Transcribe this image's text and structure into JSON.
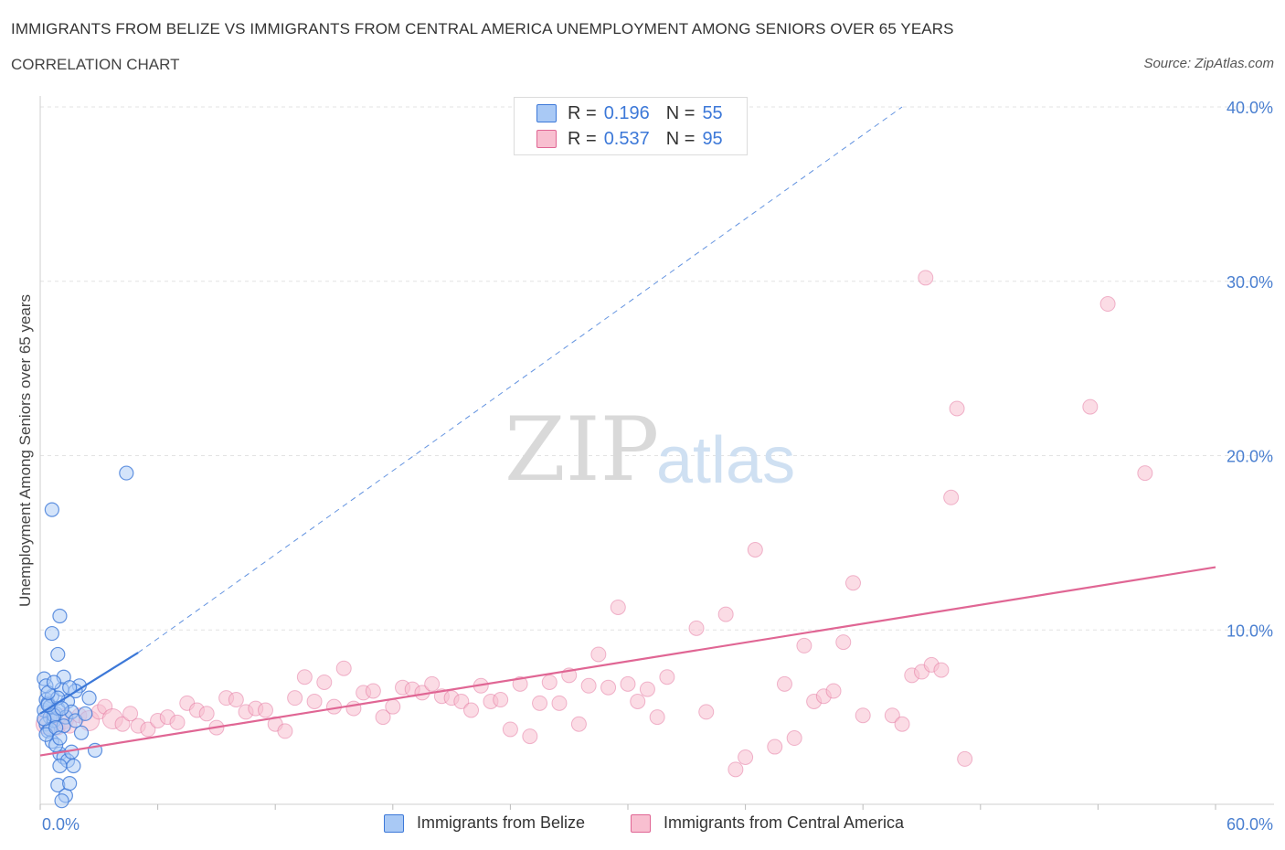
{
  "header": {
    "title": "IMMIGRANTS FROM BELIZE VS IMMIGRANTS FROM CENTRAL AMERICA UNEMPLOYMENT AMONG SENIORS OVER 65 YEARS",
    "subtitle": "CORRELATION CHART",
    "source": "Source: ZipAtlas.com"
  },
  "watermark": {
    "zip": "ZIP",
    "atlas": "atlas"
  },
  "legend_top": {
    "r_label": "R =",
    "n_label": "N =",
    "rows": [
      {
        "r": "0.196",
        "n": "55",
        "color": "#a9c9f5"
      },
      {
        "r": "0.537",
        "n": "95",
        "color": "#f8bfd0"
      }
    ]
  },
  "legend_bottom": [
    {
      "label": "Immigrants from Belize",
      "color": "#a9c9f5"
    },
    {
      "label": "Immigrants from Central America",
      "color": "#f8bfd0"
    }
  ],
  "chart_data": {
    "type": "scatter",
    "title": "IMMIGRANTS FROM BELIZE VS IMMIGRANTS FROM CENTRAL AMERICA UNEMPLOYMENT AMONG SENIORS OVER 65 YEARS",
    "xlabel": "",
    "ylabel": "Unemployment Among Seniors over 65 years",
    "xlim": [
      0,
      60
    ],
    "ylim": [
      0,
      40
    ],
    "x_tick_labels": [
      "0.0%",
      "60.0%"
    ],
    "y_ticks": [
      10,
      20,
      30,
      40
    ],
    "y_tick_labels": [
      "10.0%",
      "20.0%",
      "30.0%",
      "40.0%"
    ],
    "colors": {
      "belize": "#3c78d8",
      "belize_fill": "#a9c9f5",
      "central": "#e06694",
      "central_fill": "#f8bfd0"
    },
    "series": [
      {
        "name": "Immigrants from Belize",
        "r": 0.196,
        "n": 55,
        "trend": {
          "x0": 0.0,
          "y0": 5.2,
          "x1": 5.0,
          "y1": 8.7
        },
        "trend_extended": {
          "x0": 5.0,
          "y0": 8.7,
          "x1": 44.0,
          "y1": 40.0
        },
        "points": [
          [
            0.2,
            5.4
          ],
          [
            0.3,
            6.0
          ],
          [
            0.4,
            5.8
          ],
          [
            0.5,
            5.0
          ],
          [
            0.3,
            4.6
          ],
          [
            0.6,
            6.2
          ],
          [
            0.8,
            5.2
          ],
          [
            0.4,
            4.2
          ],
          [
            0.2,
            7.2
          ],
          [
            0.3,
            6.8
          ],
          [
            0.5,
            5.6
          ],
          [
            0.7,
            4.8
          ],
          [
            0.9,
            5.5
          ],
          [
            1.1,
            6.6
          ],
          [
            1.3,
            5.0
          ],
          [
            0.6,
            3.6
          ],
          [
            1.0,
            2.9
          ],
          [
            1.2,
            2.7
          ],
          [
            1.4,
            2.5
          ],
          [
            1.6,
            3.0
          ],
          [
            0.8,
            3.4
          ],
          [
            1.0,
            2.2
          ],
          [
            1.7,
            2.2
          ],
          [
            0.9,
            1.1
          ],
          [
            1.3,
            0.5
          ],
          [
            1.1,
            0.2
          ],
          [
            1.5,
            1.2
          ],
          [
            2.1,
            4.1
          ],
          [
            2.5,
            6.1
          ],
          [
            2.0,
            6.8
          ],
          [
            1.8,
            6.5
          ],
          [
            1.2,
            7.3
          ],
          [
            0.6,
            9.8
          ],
          [
            0.9,
            8.6
          ],
          [
            1.0,
            10.8
          ],
          [
            0.6,
            16.9
          ],
          [
            4.4,
            19.0
          ],
          [
            2.8,
            3.1
          ],
          [
            1.4,
            5.9
          ],
          [
            0.5,
            4.3
          ],
          [
            0.7,
            5.1
          ],
          [
            0.4,
            5.7
          ],
          [
            0.2,
            4.9
          ],
          [
            0.9,
            6.1
          ],
          [
            0.3,
            4.0
          ],
          [
            1.2,
            4.5
          ],
          [
            1.6,
            5.3
          ],
          [
            0.8,
            4.4
          ],
          [
            1.0,
            3.8
          ],
          [
            1.5,
            6.7
          ],
          [
            0.4,
            6.4
          ],
          [
            0.7,
            7.0
          ],
          [
            1.8,
            4.8
          ],
          [
            2.3,
            5.2
          ],
          [
            1.1,
            5.5
          ]
        ]
      },
      {
        "name": "Immigrants from Central America",
        "r": 0.537,
        "n": 95,
        "trend": {
          "x0": 0.0,
          "y0": 2.8,
          "x1": 60.0,
          "y1": 13.6
        },
        "points": [
          [
            0.3,
            4.6
          ],
          [
            0.6,
            5.2
          ],
          [
            0.9,
            4.4
          ],
          [
            1.2,
            4.9
          ],
          [
            1.5,
            4.5
          ],
          [
            2.0,
            5.1
          ],
          [
            2.5,
            4.8
          ],
          [
            3.0,
            5.3
          ],
          [
            3.3,
            5.6
          ],
          [
            3.7,
            4.9
          ],
          [
            4.2,
            4.6
          ],
          [
            4.6,
            5.2
          ],
          [
            5.0,
            4.5
          ],
          [
            5.5,
            4.3
          ],
          [
            6.0,
            4.8
          ],
          [
            6.5,
            5.0
          ],
          [
            7.0,
            4.7
          ],
          [
            7.5,
            5.8
          ],
          [
            8.0,
            5.4
          ],
          [
            8.5,
            5.2
          ],
          [
            9.0,
            4.4
          ],
          [
            9.5,
            6.1
          ],
          [
            10.0,
            6.0
          ],
          [
            10.5,
            5.3
          ],
          [
            11.0,
            5.5
          ],
          [
            11.5,
            5.4
          ],
          [
            12.0,
            4.6
          ],
          [
            12.5,
            4.2
          ],
          [
            13.0,
            6.1
          ],
          [
            13.5,
            7.3
          ],
          [
            14.0,
            5.9
          ],
          [
            14.5,
            7.0
          ],
          [
            15.0,
            5.6
          ],
          [
            15.5,
            7.8
          ],
          [
            16.0,
            5.5
          ],
          [
            16.5,
            6.4
          ],
          [
            17.0,
            6.5
          ],
          [
            17.5,
            5.0
          ],
          [
            18.0,
            5.6
          ],
          [
            18.5,
            6.7
          ],
          [
            19.0,
            6.6
          ],
          [
            19.5,
            6.4
          ],
          [
            20.0,
            6.9
          ],
          [
            20.5,
            6.2
          ],
          [
            21.0,
            6.1
          ],
          [
            21.5,
            5.9
          ],
          [
            22.0,
            5.4
          ],
          [
            22.5,
            6.8
          ],
          [
            23.0,
            5.9
          ],
          [
            23.5,
            6.0
          ],
          [
            24.0,
            4.3
          ],
          [
            24.5,
            6.9
          ],
          [
            25.0,
            3.9
          ],
          [
            25.5,
            5.8
          ],
          [
            26.0,
            7.0
          ],
          [
            26.5,
            5.8
          ],
          [
            27.0,
            7.4
          ],
          [
            27.5,
            4.6
          ],
          [
            28.0,
            6.8
          ],
          [
            28.5,
            8.6
          ],
          [
            29.0,
            6.7
          ],
          [
            29.5,
            11.3
          ],
          [
            30.0,
            6.9
          ],
          [
            30.5,
            5.9
          ],
          [
            31.0,
            6.6
          ],
          [
            31.5,
            5.0
          ],
          [
            32.0,
            7.3
          ],
          [
            33.5,
            10.1
          ],
          [
            34.0,
            5.3
          ],
          [
            35.0,
            10.9
          ],
          [
            35.5,
            2.0
          ],
          [
            36.0,
            2.7
          ],
          [
            36.5,
            14.6
          ],
          [
            37.5,
            3.3
          ],
          [
            38.0,
            6.9
          ],
          [
            38.5,
            3.8
          ],
          [
            39.0,
            9.1
          ],
          [
            39.5,
            5.9
          ],
          [
            40.0,
            6.2
          ],
          [
            40.5,
            6.5
          ],
          [
            41.0,
            9.3
          ],
          [
            41.5,
            12.7
          ],
          [
            42.0,
            5.1
          ],
          [
            43.5,
            5.1
          ],
          [
            44.0,
            4.6
          ],
          [
            44.5,
            7.4
          ],
          [
            45.0,
            7.6
          ],
          [
            45.5,
            8.0
          ],
          [
            46.0,
            7.7
          ],
          [
            45.2,
            30.2
          ],
          [
            46.5,
            17.6
          ],
          [
            46.8,
            22.7
          ],
          [
            47.2,
            2.6
          ],
          [
            53.6,
            22.8
          ],
          [
            54.5,
            28.7
          ],
          [
            56.4,
            19.0
          ]
        ]
      }
    ]
  }
}
